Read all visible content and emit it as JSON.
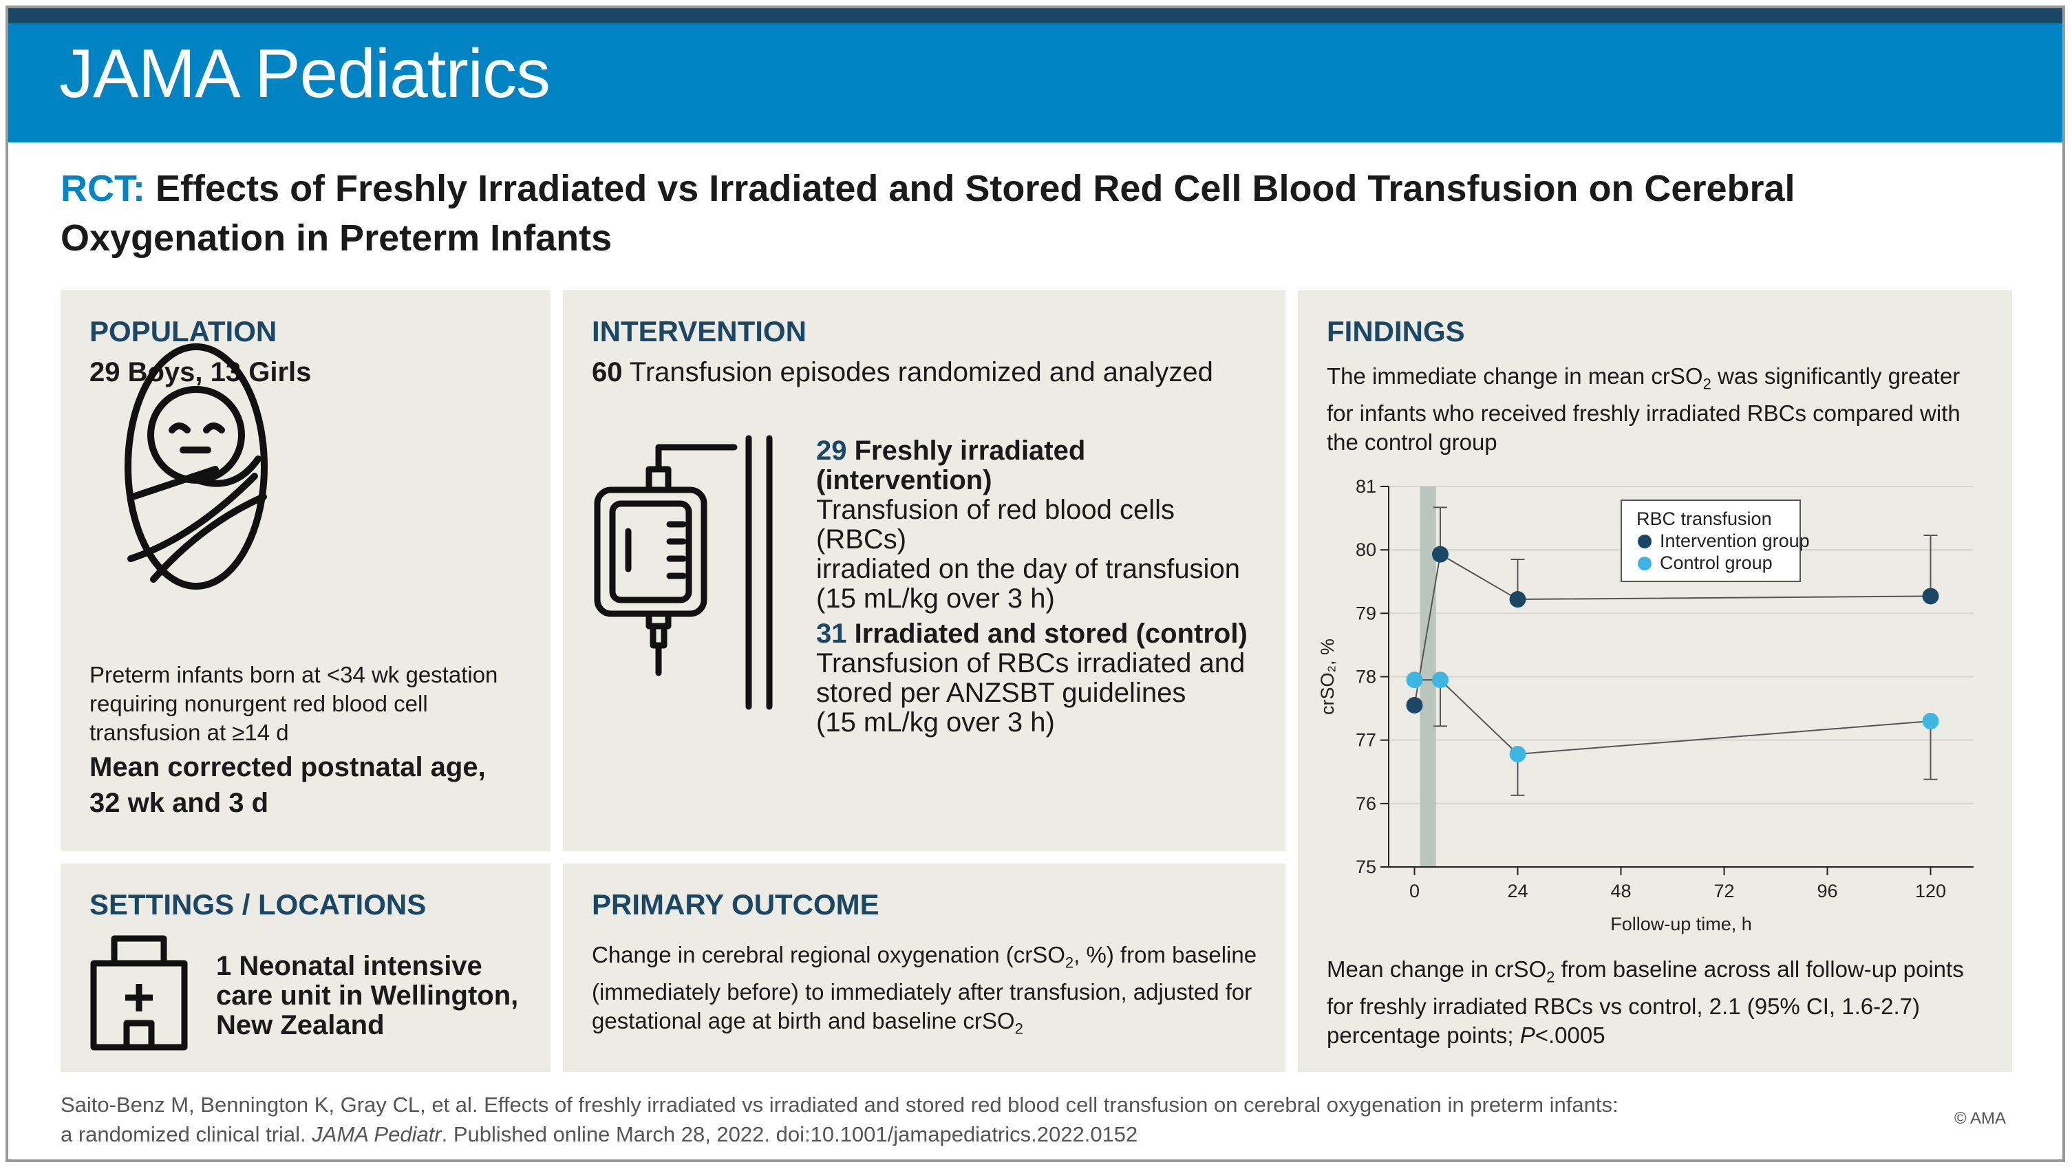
{
  "journal": "JAMA Pediatrics",
  "title": {
    "prefix": "RCT:",
    "text": "Effects of Freshly Irradiated vs Irradiated and Stored Red Cell Blood Transfusion on Cerebral Oxygenation in Preterm Infants"
  },
  "population": {
    "heading": "POPULATION",
    "counts": "29 Boys, 13 Girls",
    "description": "Preterm infants born at <34 wk gestation requiring nonurgent red blood cell transfusion at ≥14 d",
    "mean_age": "Mean corrected postnatal age, 32 wk and 3 d",
    "icon": "swaddled-infant-icon"
  },
  "intervention": {
    "heading": "INTERVENTION",
    "total_num": "60",
    "total_text": " Transfusion episodes randomized and analyzed",
    "icon": "iv-bag-icon",
    "groups": [
      {
        "num": "29",
        "name_line1": " Freshly irradiated",
        "name_line2": "(intervention)",
        "desc": [
          "Transfusion of red blood cells (RBCs)",
          "irradiated on the day of transfusion",
          "(15 mL/kg over 3 h)"
        ]
      },
      {
        "num": "31",
        "name_line1": " Irradiated and stored (control)",
        "desc": [
          "Transfusion of RBCs irradiated and",
          "stored per ANZSBT guidelines",
          "(15 mL/kg over 3 h)"
        ]
      }
    ]
  },
  "settings": {
    "heading": "SETTINGS / LOCATIONS",
    "text": "1 Neonatal intensive care unit in Wellington, New Zealand",
    "icon": "hospital-icon"
  },
  "primary_outcome": {
    "heading": "PRIMARY OUTCOME",
    "text_a": "Change in cerebral regional oxygenation (crSO",
    "sub": "2",
    "text_b": ", %) from baseline (immediately before) to immediately after transfusion, adjusted for gestational age at birth and baseline crSO"
  },
  "findings": {
    "heading": "FINDINGS",
    "intro_a": "The immediate change in mean crSO",
    "intro_sub": "2",
    "intro_b": " was significantly greater for infants who received freshly irradiated RBCs compared with the control group",
    "summary_a": "Mean change  in crSO",
    "summary_b": " from baseline across all follow-up points for freshly irradiated RBCs vs control, 2.1 (95% CI, 1.6-2.7) percentage points; ",
    "summary_p": "P",
    "summary_c": "<.0005"
  },
  "chart_data": {
    "type": "line",
    "xlabel": "Follow-up time, h",
    "ylabel": "crSO₂, %",
    "xlim": [
      -6,
      130
    ],
    "ylim": [
      75,
      81
    ],
    "xticks": [
      0,
      24,
      48,
      72,
      96,
      120
    ],
    "yticks": [
      75,
      76,
      77,
      78,
      79,
      80,
      81
    ],
    "shaded_band_x": [
      1.3,
      5
    ],
    "grid": "horizontal",
    "legend": {
      "title": "RBC transfusion",
      "position": "top-right"
    },
    "series": [
      {
        "name": "Intervention group",
        "color": "#1b4766",
        "x": [
          0,
          6,
          24,
          120
        ],
        "y": [
          77.55,
          79.93,
          79.22,
          79.27
        ],
        "err_upper": [
          null,
          80.67,
          79.85,
          80.23
        ]
      },
      {
        "name": "Control group",
        "color": "#3db6e4",
        "x": [
          0,
          6,
          24,
          120
        ],
        "y": [
          77.95,
          77.95,
          76.78,
          77.3
        ],
        "err_lower": [
          null,
          77.22,
          76.13,
          76.38
        ]
      }
    ]
  },
  "citation": {
    "line1": "Saito-Benz M, Bennington K, Gray CL, et al. Effects of freshly irradiated vs irradiated and stored red blood cell transfusion on cerebral oxygenation in preterm infants:",
    "line2a": "a randomized clinical trial. ",
    "line2_journal": "JAMA Pediatr",
    "line2b": ". Published online March 28, 2022. doi:10.1001/jamapediatrics.2022.0152"
  },
  "copyright": "© AMA",
  "colors": {
    "header": "#0084c4",
    "navy": "#1b4766",
    "panel": "#ecebe4",
    "control": "#3db6e4"
  }
}
